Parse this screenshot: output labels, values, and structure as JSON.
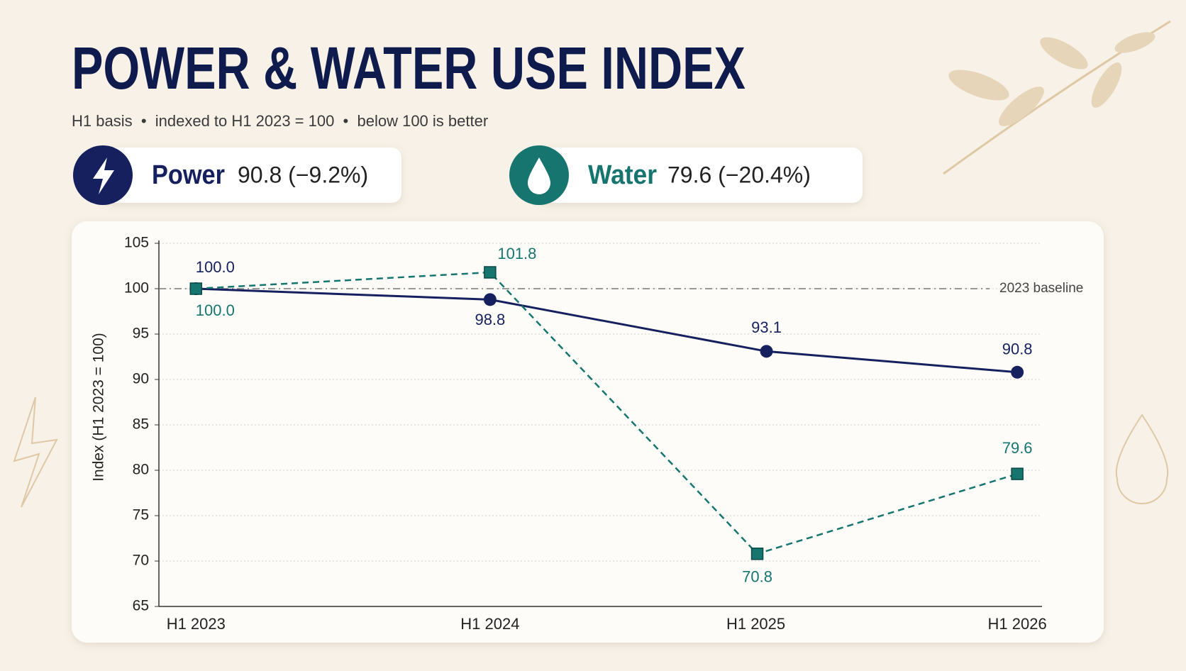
{
  "chart_data": {
    "type": "line",
    "title": "POWER & WATER USE INDEX",
    "subtitle": "H1 basis  •  indexed to H1 2023 = 100  •  below 100 is better",
    "y_label": "Index (H1 2023 = 100)",
    "categories": [
      "H1 2023",
      "H1 2024",
      "H1 2025",
      "H1 2026"
    ],
    "series": [
      {
        "name": "Power",
        "summary": "90.8 (−9.2%)",
        "color": "#16205f",
        "marker": "circle",
        "dashed": false,
        "values": [
          100,
          98.8,
          93.1,
          90.8
        ],
        "value_labels": [
          "100.0",
          "98.8",
          "93.1",
          "90.8"
        ]
      },
      {
        "name": "Water",
        "summary": "79.6 (−20.4%)",
        "color": "#16756f",
        "marker": "square",
        "dashed": true,
        "values": [
          100,
          101.8,
          70.8,
          79.6
        ],
        "value_labels": [
          "100.0",
          "101.8",
          "70.8",
          "79.6"
        ]
      }
    ],
    "baseline": {
      "value": 100,
      "label": "2023 baseline"
    },
    "ylim": [
      65,
      105
    ],
    "yticks": [
      65,
      70,
      75,
      80,
      85,
      90,
      95,
      100,
      105
    ],
    "grid": true
  }
}
